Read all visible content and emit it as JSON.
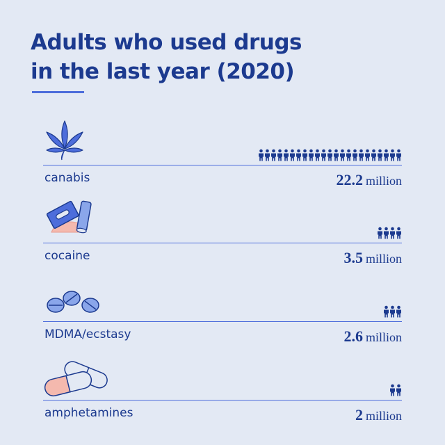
{
  "title": {
    "line1": "Adults who used drugs",
    "line2": "in the last year (2020)"
  },
  "colors": {
    "background": "#e3e9f4",
    "primary": "#1c3a8f",
    "accent": "#4d6ddb",
    "light_accent": "#8aa6ea",
    "powder": "#f4b9ae"
  },
  "rows": [
    {
      "label": "canabis",
      "value_num": "22.2",
      "value_unit": "million",
      "icon": "cannabis-leaf-icon"
    },
    {
      "label": "cocaine",
      "value_num": "3.5",
      "value_unit": "million",
      "icon": "razor-blade-and-powder-icon"
    },
    {
      "label": "MDMA/ecstasy",
      "value_num": "2.6",
      "value_unit": "million",
      "icon": "pills-icon"
    },
    {
      "label": "amphetamines",
      "value_num": "2",
      "value_unit": "million",
      "icon": "capsules-icon"
    }
  ],
  "chart_data": {
    "type": "bar",
    "title": "Adults who used drugs in the last year (2020)",
    "categories": [
      "canabis",
      "cocaine",
      "MDMA/ecstasy",
      "amphetamines"
    ],
    "values": [
      22.2,
      3.5,
      2.6,
      2
    ],
    "unit": "million"
  }
}
